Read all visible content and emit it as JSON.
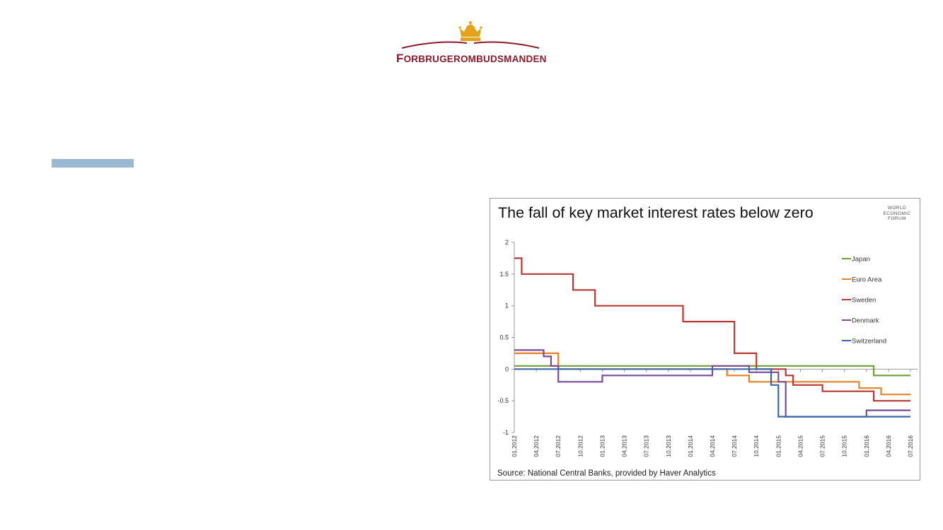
{
  "logo": {
    "first_letter": "F",
    "rest": "ORBRUGEROMBUDSMANDEN",
    "brand_color": "#8b1c2c",
    "crown_color": "#e3a21a"
  },
  "accent_bar_color": "#9bb8d3",
  "wef_logo": [
    "WORLD",
    "ECONOMIC",
    "FORUM"
  ],
  "chart_data": {
    "type": "line",
    "title": "The fall of key market interest rates below zero",
    "source": "Source: National Central Banks, provided by Haver Analytics",
    "xlabel": "",
    "ylabel": "",
    "xlim": [
      "2012-01",
      "2016-07"
    ],
    "ylim": [
      -1,
      2
    ],
    "y_ticks": [
      "2",
      "1.5",
      "1",
      "0.5",
      "0",
      "-0.5",
      "-1"
    ],
    "x_tick_labels": [
      "01.2012",
      "04.2012",
      "07.2012",
      "10.2012",
      "01.2013",
      "04.2013",
      "07.2013",
      "10.2013",
      "01.2014",
      "04.2014",
      "07.2014",
      "10.2014",
      "01.2015",
      "04.2015",
      "07.2015",
      "10.2015",
      "01.2016",
      "04.2016",
      "07.2016"
    ],
    "grid": false,
    "legend_position": "right",
    "series": [
      {
        "name": "Japan",
        "color": "#6f9e3a",
        "points": [
          [
            "2012-01",
            0.05
          ],
          [
            "2016-02",
            0.05
          ],
          [
            "2016-02",
            -0.1
          ],
          [
            "2016-07",
            -0.1
          ]
        ]
      },
      {
        "name": "Euro Area",
        "color": "#e8822a",
        "points": [
          [
            "2012-01",
            0.25
          ],
          [
            "2012-07",
            0.25
          ],
          [
            "2012-07",
            0.0
          ],
          [
            "2014-06",
            0.0
          ],
          [
            "2014-06",
            -0.1
          ],
          [
            "2014-09",
            -0.1
          ],
          [
            "2014-09",
            -0.2
          ],
          [
            "2015-12",
            -0.2
          ],
          [
            "2015-12",
            -0.3
          ],
          [
            "2016-03",
            -0.3
          ],
          [
            "2016-03",
            -0.4
          ],
          [
            "2016-07",
            -0.4
          ]
        ]
      },
      {
        "name": "Sweden",
        "color": "#b83a36",
        "points": [
          [
            "2012-01",
            1.75
          ],
          [
            "2012-02",
            1.75
          ],
          [
            "2012-02",
            1.5
          ],
          [
            "2012-09",
            1.5
          ],
          [
            "2012-09",
            1.25
          ],
          [
            "2012-12",
            1.25
          ],
          [
            "2012-12",
            1.0
          ],
          [
            "2013-12",
            1.0
          ],
          [
            "2013-12",
            0.75
          ],
          [
            "2014-07",
            0.75
          ],
          [
            "2014-07",
            0.25
          ],
          [
            "2014-10",
            0.25
          ],
          [
            "2014-10",
            0.0
          ],
          [
            "2015-02",
            0.0
          ],
          [
            "2015-02",
            -0.1
          ],
          [
            "2015-03",
            -0.1
          ],
          [
            "2015-03",
            -0.25
          ],
          [
            "2015-07",
            -0.25
          ],
          [
            "2015-07",
            -0.35
          ],
          [
            "2016-02",
            -0.35
          ],
          [
            "2016-02",
            -0.5
          ],
          [
            "2016-07",
            -0.5
          ]
        ]
      },
      {
        "name": "Denmark",
        "color": "#7a4c9a",
        "points": [
          [
            "2012-01",
            0.3
          ],
          [
            "2012-05",
            0.3
          ],
          [
            "2012-05",
            0.2
          ],
          [
            "2012-06",
            0.2
          ],
          [
            "2012-06",
            0.05
          ],
          [
            "2012-07",
            0.05
          ],
          [
            "2012-07",
            -0.2
          ],
          [
            "2013-01",
            -0.2
          ],
          [
            "2013-01",
            -0.1
          ],
          [
            "2014-04",
            -0.1
          ],
          [
            "2014-04",
            0.05
          ],
          [
            "2014-09",
            0.05
          ],
          [
            "2014-09",
            -0.05
          ],
          [
            "2015-01",
            -0.05
          ],
          [
            "2015-01",
            -0.2
          ],
          [
            "2015-02",
            -0.2
          ],
          [
            "2015-02",
            -0.35
          ],
          [
            "2015-02",
            -0.5
          ],
          [
            "2015-02",
            -0.75
          ],
          [
            "2016-01",
            -0.75
          ],
          [
            "2016-01",
            -0.65
          ],
          [
            "2016-07",
            -0.65
          ]
        ]
      },
      {
        "name": "Switzerland",
        "color": "#3b67a8",
        "points": [
          [
            "2012-01",
            0.0
          ],
          [
            "2014-12",
            0.0
          ],
          [
            "2014-12",
            -0.25
          ],
          [
            "2015-01",
            -0.25
          ],
          [
            "2015-01",
            -0.75
          ],
          [
            "2016-07",
            -0.75
          ]
        ]
      }
    ]
  }
}
